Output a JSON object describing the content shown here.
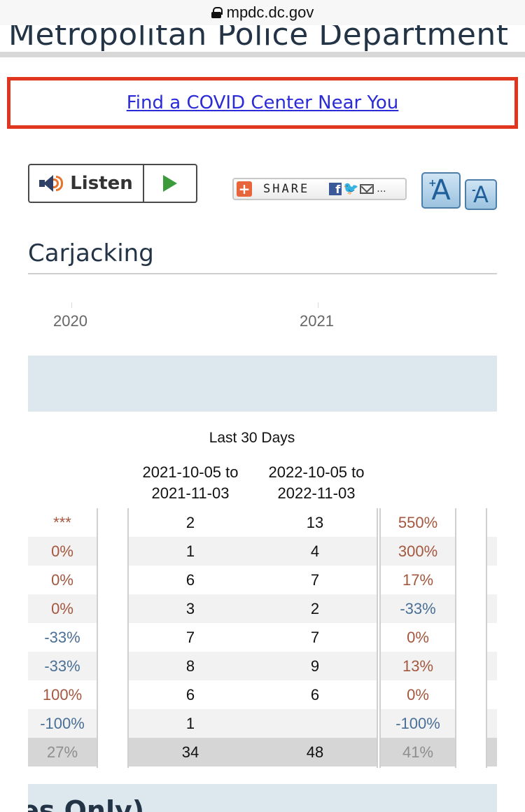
{
  "browser": {
    "url": "mpdc.dc.gov"
  },
  "site": {
    "title": "Metropolitan Police Department"
  },
  "banner": {
    "link_text": "Find a COVID Center Near You"
  },
  "toolbar": {
    "listen_label": "Listen",
    "share_label": "SHARE",
    "share_more": "...",
    "font_increase_glyph": "A",
    "font_decrease_glyph": "A",
    "font_increase_sign": "+",
    "font_decrease_sign": "-"
  },
  "section": {
    "title": "Carjacking"
  },
  "timeline": {
    "years": [
      "2020",
      "2021"
    ]
  },
  "table": {
    "title": "Last 30 Days",
    "columns": [
      {
        "line1": "2021-10-05 to",
        "line2": "2021-11-03"
      },
      {
        "line1": "2022-10-05 to",
        "line2": "2022-11-03"
      }
    ],
    "rows": [
      {
        "left": "***",
        "left_tone": "pos",
        "a": "2",
        "b": "13",
        "change": "550%",
        "change_tone": "pos"
      },
      {
        "left": "0%",
        "left_tone": "pos",
        "a": "1",
        "b": "4",
        "change": "300%",
        "change_tone": "pos"
      },
      {
        "left": "0%",
        "left_tone": "pos",
        "a": "6",
        "b": "7",
        "change": "17%",
        "change_tone": "pos"
      },
      {
        "left": "0%",
        "left_tone": "pos",
        "a": "3",
        "b": "2",
        "change": "-33%",
        "change_tone": "neg"
      },
      {
        "left": "-33%",
        "left_tone": "neg",
        "a": "7",
        "b": "7",
        "change": "0%",
        "change_tone": "pos"
      },
      {
        "left": "-33%",
        "left_tone": "neg",
        "a": "8",
        "b": "9",
        "change": "13%",
        "change_tone": "pos"
      },
      {
        "left": "100%",
        "left_tone": "pos",
        "a": "6",
        "b": "6",
        "change": "0%",
        "change_tone": "pos"
      },
      {
        "left": "-100%",
        "left_tone": "neg",
        "a": "1",
        "b": "",
        "change": "-100%",
        "change_tone": "neg"
      }
    ],
    "total": {
      "left": "27%",
      "a": "34",
      "b": "48",
      "change": "41%"
    }
  },
  "bottom": {
    "partial_text": "es Only)"
  },
  "colors": {
    "positive": "#a4573f",
    "negative": "#4a6f96",
    "link": "#2a2ad8",
    "highlight_border": "#e0351f",
    "header_text": "#243447"
  }
}
